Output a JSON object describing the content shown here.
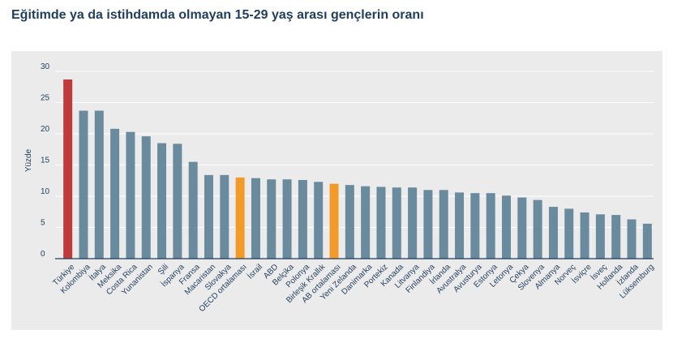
{
  "chart_data": {
    "type": "bar",
    "title": "Eğitimde ya da istihdamda olmayan 15-29 yaş arası gençlerin oranı",
    "xlabel": "",
    "ylabel": "Yüzde",
    "ylim": [
      0,
      30
    ],
    "yticks": [
      "0",
      "5",
      "10",
      "15",
      "20",
      "25",
      "30"
    ],
    "grid": true,
    "categories": [
      "Türkiye",
      "Kolombiya",
      "İtalya",
      "Meksika",
      "Costa Rica",
      "Yunanistan",
      "Şili",
      "İspanya",
      "Fransa",
      "Macaristan",
      "Slovakya",
      "OECD ortalaması",
      "İsrail",
      "ABD",
      "Belçika",
      "Polonya",
      "Birleşik Krallık",
      "AB ortalaması",
      "Yeni Zelanda",
      "Danimarka",
      "Portekiz",
      "Kanada",
      "Litvanya",
      "Finlandiya",
      "İrlanda",
      "Avustralya",
      "Avusturya",
      "Estonya",
      "Letonya",
      "Çekya",
      "Slovenya",
      "Almanya",
      "Norveç",
      "İsviçre",
      "İsveç",
      "Hollanda",
      "İzlanda",
      "Lüksemburg"
    ],
    "values": [
      28.7,
      23.7,
      23.7,
      20.8,
      20.3,
      19.6,
      18.5,
      18.4,
      15.5,
      13.4,
      13.4,
      13.0,
      12.9,
      12.7,
      12.7,
      12.6,
      12.3,
      12.0,
      11.8,
      11.6,
      11.5,
      11.4,
      11.4,
      11.0,
      11.0,
      10.6,
      10.5,
      10.5,
      10.1,
      9.8,
      9.4,
      8.3,
      8.0,
      7.4,
      7.1,
      7.0,
      6.3,
      5.6
    ],
    "bar_colors": {
      "default": "#6a8a9e",
      "highlight_red": "#c0393b",
      "highlight_orange": "#f39b2a"
    },
    "highlight": {
      "Türkiye": "highlight_red",
      "OECD ortalaması": "highlight_orange",
      "AB ortalaması": "highlight_orange"
    }
  }
}
